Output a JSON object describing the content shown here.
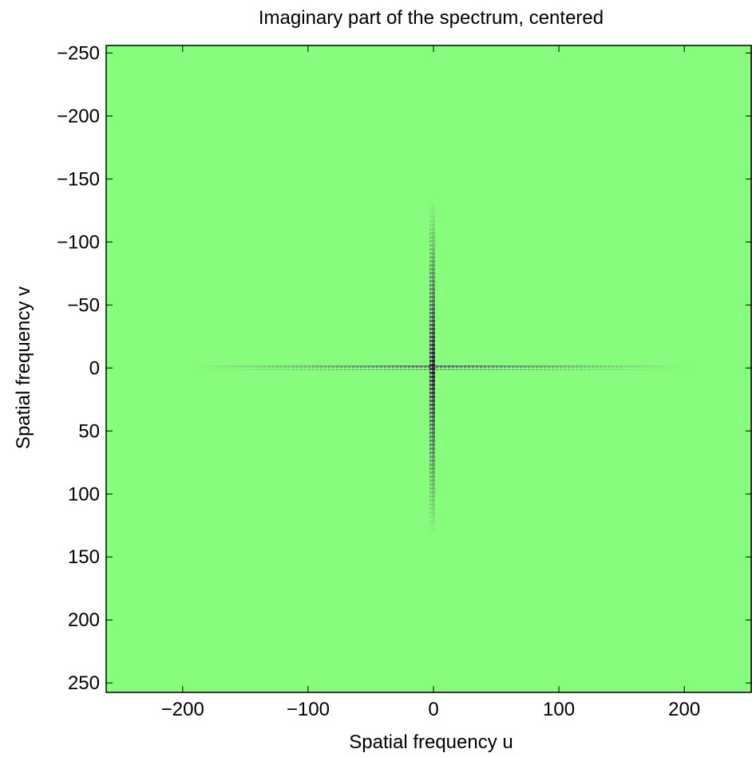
{
  "chart_data": {
    "type": "image",
    "title": "Imaginary part of the spectrum, centered",
    "x_label": "Spatial frequency u",
    "y_label": "Spatial frequency v",
    "xlim": [
      -261,
      254
    ],
    "ylim": [
      -256,
      257.5
    ],
    "y_reversed": true,
    "background_color": "#88fc7c",
    "xticks": [
      {
        "value": -200,
        "label": "−200"
      },
      {
        "value": -100,
        "label": "−100"
      },
      0,
      100,
      200
    ],
    "yticks": [
      {
        "value": -250,
        "label": "−250"
      },
      {
        "value": -200,
        "label": "−200"
      },
      {
        "value": -150,
        "label": "−150"
      },
      {
        "value": -100,
        "label": "−100"
      },
      {
        "value": -50,
        "label": "−50"
      },
      0,
      50,
      100,
      150,
      200,
      250
    ]
  }
}
